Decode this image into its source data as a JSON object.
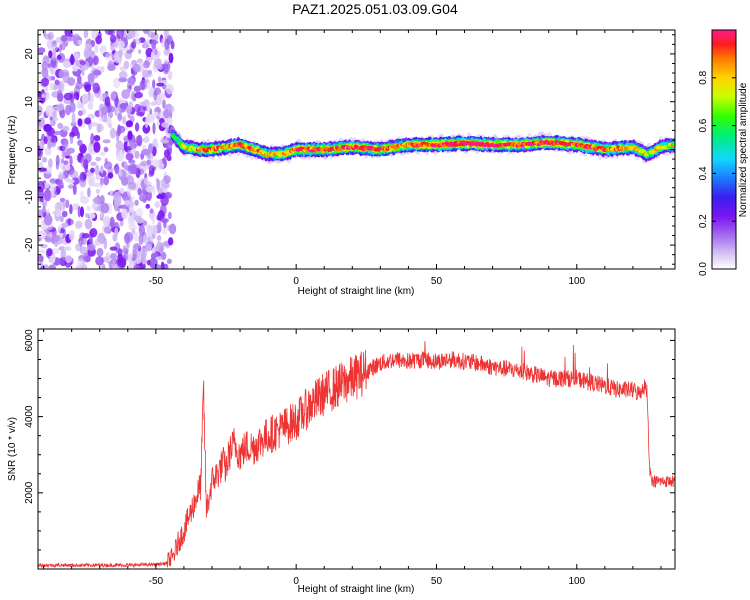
{
  "title": "PAZ1.2025.051.03.09.G04",
  "colors": {
    "snr_line": "#ee3333",
    "noise_purple": "#7a16f2",
    "colormap": [
      "#ffffff",
      "#d9c6f6",
      "#a46bf0",
      "#7a16f2",
      "#3a1ef0",
      "#1a7cff",
      "#11d8ff",
      "#00ee77",
      "#33ff00",
      "#c8ff00",
      "#ffd200",
      "#ff7a00",
      "#ff1d1d",
      "#ff1a8c"
    ]
  },
  "chart_data": [
    {
      "type": "heatmap",
      "title": "PAZ1.2025.051.03.09.G04",
      "xlabel": "Height of straight line (km)",
      "ylabel": "Frequency (Hz)",
      "xlim": [
        -92,
        135
      ],
      "ylim": [
        -25,
        25
      ],
      "x_ticks": [
        -50,
        0,
        50,
        100
      ],
      "y_ticks": [
        -20,
        -10,
        0,
        10,
        20
      ],
      "colorbar": {
        "label": "Normalized spectral amplitude",
        "range": [
          0,
          1
        ],
        "ticks": [
          0.0,
          0.2,
          0.4,
          0.6,
          0.8
        ]
      },
      "noise_region": {
        "x_from": -92,
        "x_to": -44
      },
      "ridge": {
        "x": [
          -44,
          -40,
          -35,
          -30,
          -25,
          -20,
          -15,
          -10,
          -5,
          0,
          10,
          20,
          30,
          40,
          50,
          60,
          70,
          80,
          90,
          100,
          110,
          120,
          125,
          130,
          135
        ],
        "freq": [
          3,
          0.5,
          0,
          0,
          0.5,
          1,
          0,
          -1,
          -1,
          0,
          0,
          0.5,
          0,
          1,
          1,
          1.3,
          1,
          1,
          1.5,
          1,
          0,
          0.5,
          -1,
          0.5,
          1
        ],
        "amplitude": [
          0.5,
          0.7,
          0.8,
          0.85,
          0.8,
          0.9,
          0.85,
          0.75,
          0.8,
          0.9,
          0.9,
          0.95,
          0.9,
          0.85,
          0.95,
          1.0,
          0.95,
          0.9,
          0.95,
          0.9,
          0.85,
          0.8,
          0.7,
          0.75,
          0.7
        ]
      }
    },
    {
      "type": "line",
      "title": "",
      "xlabel": "Height of straight line (km)",
      "ylabel": "SNR (10 * v/v)",
      "xlim": [
        -92,
        135
      ],
      "ylim": [
        0,
        6300
      ],
      "x_ticks": [
        -50,
        0,
        50,
        100
      ],
      "y_ticks": [
        2000,
        4000,
        6000
      ],
      "series": [
        {
          "x": [
            -92,
            -80,
            -70,
            -60,
            -50,
            -46,
            -44,
            -42,
            -40,
            -38,
            -36,
            -34,
            -33,
            -32,
            -30,
            -28,
            -26,
            -25,
            -24,
            -22,
            -20,
            -18,
            -15,
            -12,
            -10,
            -5,
            0,
            5,
            10,
            15,
            20,
            25,
            30,
            35,
            40,
            45,
            50,
            55,
            60,
            65,
            70,
            75,
            80,
            85,
            90,
            95,
            100,
            105,
            110,
            115,
            120,
            122,
            124,
            125,
            126,
            127,
            130,
            135
          ],
          "y": [
            100,
            100,
            100,
            100,
            120,
            150,
            300,
            700,
            1000,
            1400,
            1800,
            2200,
            4700,
            1500,
            2300,
            2500,
            2800,
            2600,
            3000,
            3300,
            3000,
            3200,
            3200,
            3400,
            3500,
            3700,
            3900,
            4300,
            4600,
            4800,
            5000,
            5200,
            5400,
            5500,
            5450,
            5500,
            5450,
            5500,
            5450,
            5400,
            5300,
            5250,
            5200,
            5100,
            5000,
            5000,
            5000,
            4900,
            4800,
            4700,
            4700,
            4600,
            4800,
            4700,
            2600,
            2300,
            2300,
            2300
          ]
        }
      ]
    }
  ]
}
